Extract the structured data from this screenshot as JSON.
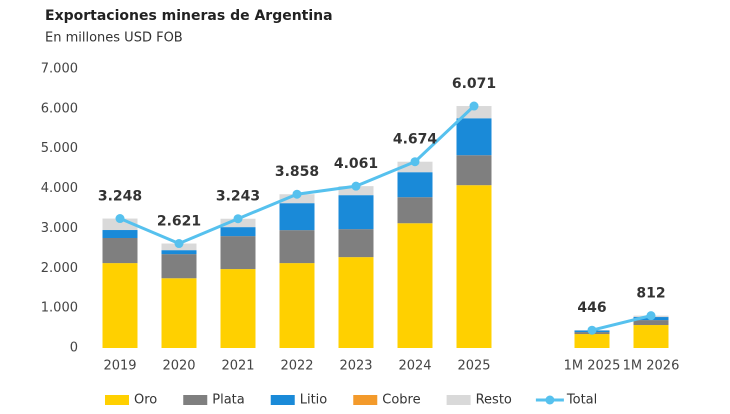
{
  "chart_data": {
    "type": "bar",
    "stacked": true,
    "title": "Exportaciones mineras de Argentina",
    "subtitle": "En millones USD FOB",
    "categories": [
      "2019",
      "2020",
      "2021",
      "2022",
      "2023",
      "2024",
      "2025",
      null,
      "1M 2025",
      "1M 2026"
    ],
    "ylim": [
      0,
      7000
    ],
    "yticks": [
      0,
      {
        "value": 1000,
        "label": "1.000"
      },
      {
        "value": 2000,
        "label": "2.000"
      },
      {
        "value": 3000,
        "label": "3.000"
      },
      {
        "value": 4000,
        "label": "4.000"
      },
      {
        "value": 5000,
        "label": "5.000"
      },
      {
        "value": 6000,
        "label": "6.000"
      },
      {
        "value": 7000,
        "label": "7.000"
      }
    ],
    "grid": false,
    "legend": "bottom",
    "series": [
      {
        "name": "Oro",
        "color": "#ffd000",
        "values": [
          2130,
          1750,
          1980,
          2130,
          2280,
          3130,
          4085,
          null,
          350,
          576
        ]
      },
      {
        "name": "Plata",
        "color": "#7f7f7f",
        "values": [
          630,
          605,
          827,
          827,
          702,
          654,
          752,
          null,
          50,
          124
        ]
      },
      {
        "name": "Litio",
        "color": "#1a8ad8",
        "values": [
          200,
          100,
          226,
          677,
          853,
          627,
          927,
          null,
          40,
          77
        ]
      },
      {
        "name": "Cobre",
        "color": "#f39a2b",
        "values": [
          0,
          0,
          0,
          0,
          0,
          0,
          0,
          null,
          0,
          0
        ]
      },
      {
        "name": "Resto",
        "color": "#d9d9d9",
        "values": [
          288,
          166,
          210,
          224,
          226,
          263,
          307,
          null,
          6,
          35
        ]
      },
      {
        "name": "Total",
        "type": "line",
        "color": "#56c1ee",
        "values": [
          3248,
          2621,
          3243,
          3858,
          4061,
          4674,
          6071,
          null,
          446,
          812
        ],
        "value_labels": [
          "3.248",
          "2.621",
          "3.243",
          "3.858",
          "4.061",
          "4.674",
          "6.071",
          null,
          "446",
          "812"
        ]
      }
    ]
  }
}
